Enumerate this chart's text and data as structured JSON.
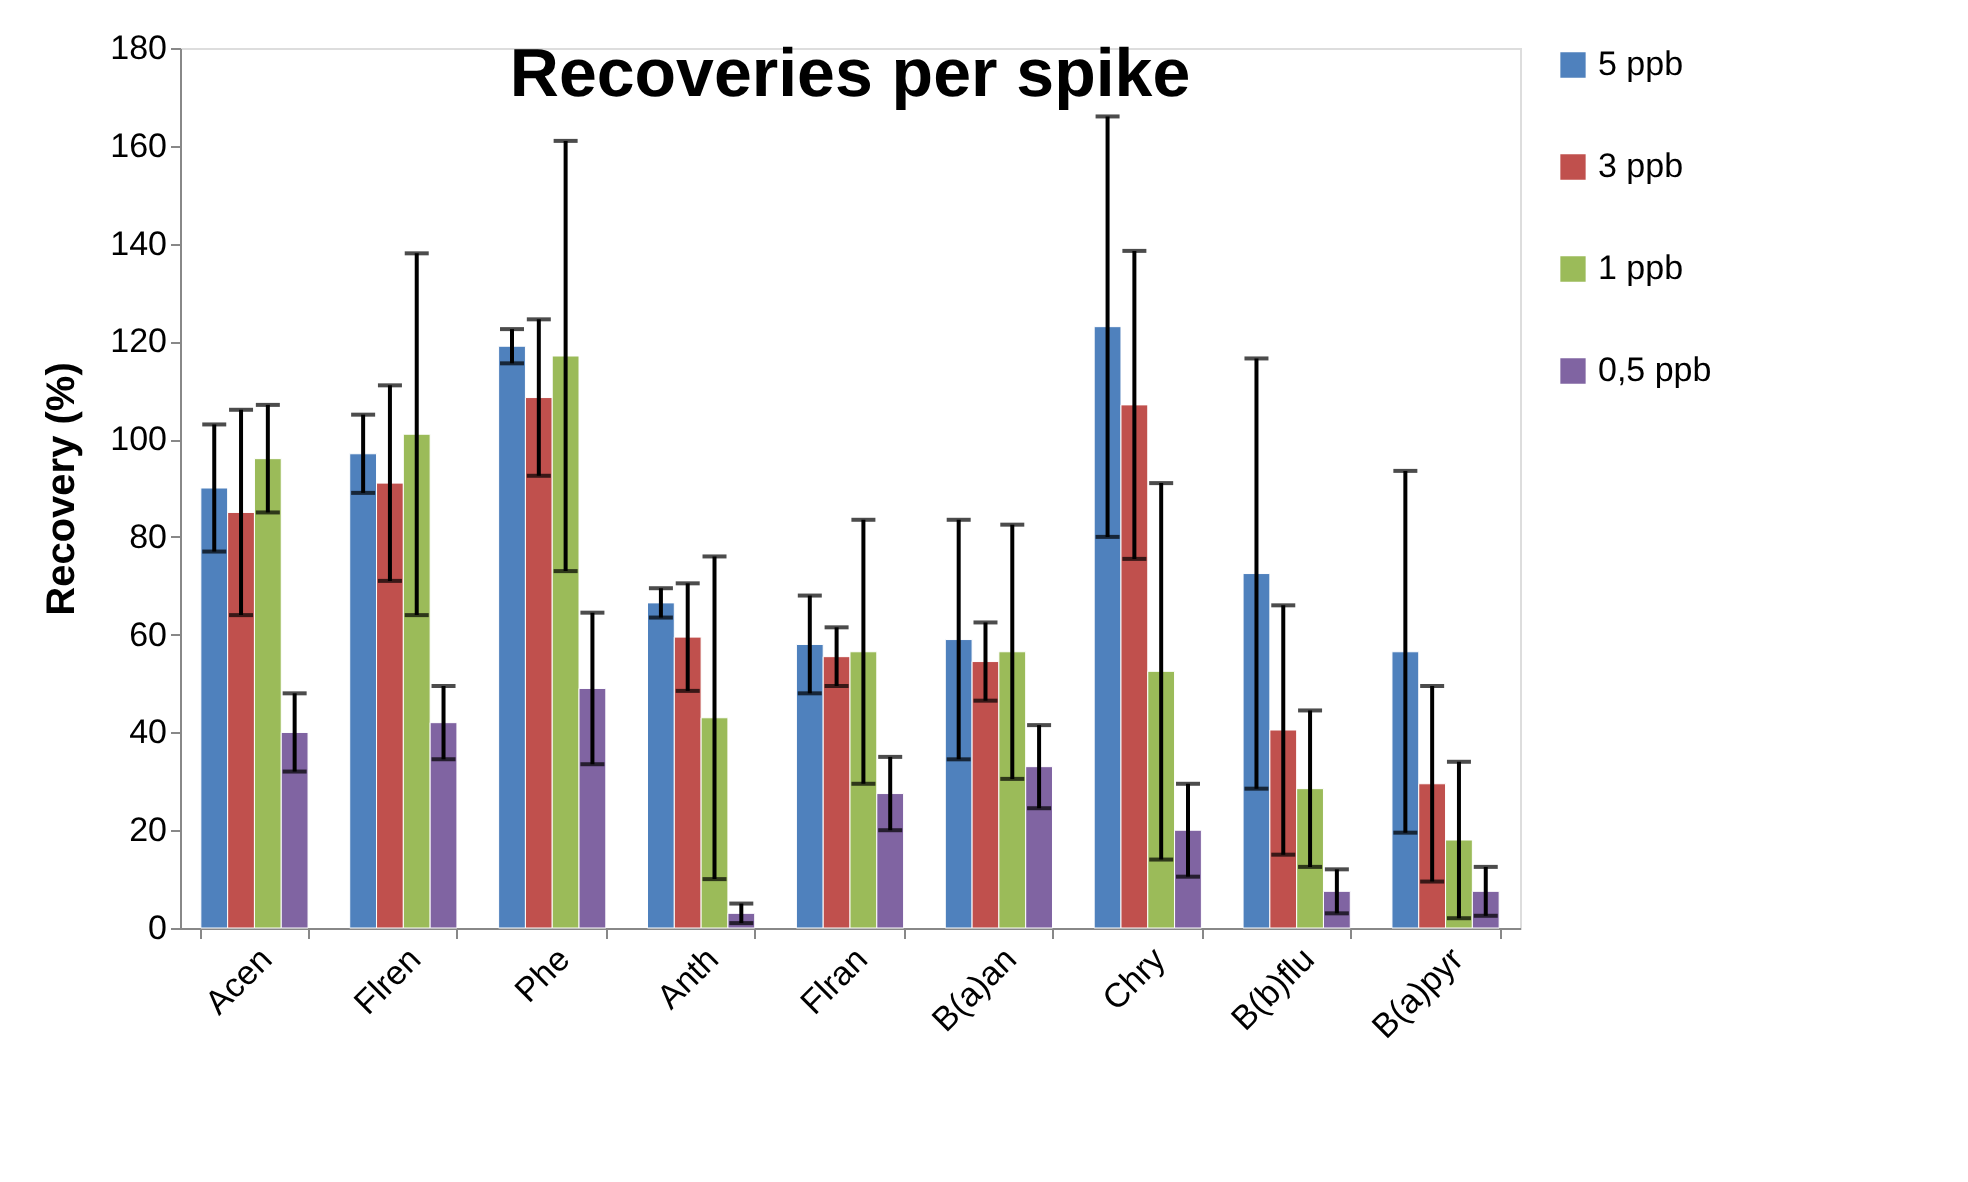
{
  "chart_data": {
    "type": "bar",
    "title": "Recoveries per spike",
    "ylabel": "Recovery (%)",
    "categories": [
      "Acen",
      "Flren",
      "Phe",
      "Anth",
      "Flran",
      "B(a)an",
      "Chry",
      "B(b)flu",
      "B(a)pyr"
    ],
    "series": [
      {
        "name": "5 ppb",
        "color": "#4f81bd",
        "values": [
          90,
          97,
          119,
          66.5,
          58,
          59,
          123,
          72.5,
          56.5
        ],
        "errors": [
          13,
          8,
          3.5,
          3,
          10,
          24.5,
          43,
          44,
          37
        ]
      },
      {
        "name": "3 ppb",
        "color": "#c0504d",
        "values": [
          85,
          91,
          108.5,
          59.5,
          55.5,
          54.5,
          107,
          40.5,
          29.5
        ],
        "errors": [
          21,
          20,
          16,
          11,
          6,
          8,
          31.5,
          25.5,
          20
        ]
      },
      {
        "name": "1 ppb",
        "color": "#9bbb59",
        "values": [
          96,
          101,
          117,
          43,
          56.5,
          56.5,
          52.5,
          28.5,
          18
        ],
        "errors": [
          11,
          37,
          44,
          33,
          27,
          26,
          38.5,
          16,
          16
        ]
      },
      {
        "name": "0,5 ppb",
        "color": "#8064a2",
        "values": [
          40,
          42,
          49,
          3,
          27.5,
          33,
          20,
          7.5,
          7.5
        ],
        "errors": [
          8,
          7.5,
          15.5,
          2,
          7.5,
          8.5,
          9.5,
          4.5,
          5
        ]
      }
    ],
    "ylim": [
      0,
      180
    ],
    "yticks": [
      0,
      20,
      40,
      60,
      80,
      100,
      120,
      140,
      160,
      180
    ],
    "grid": false,
    "legend": "right"
  }
}
